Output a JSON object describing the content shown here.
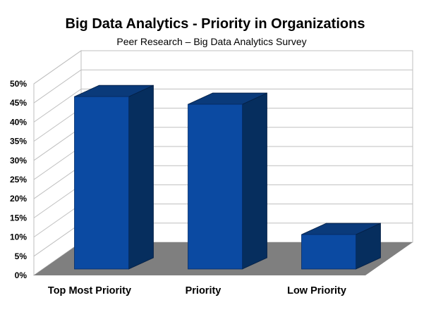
{
  "chart_data": {
    "type": "bar",
    "title": "Big Data Analytics - Priority in Organizations",
    "subtitle": "Peer Research – Big Data Analytics Survey",
    "categories": [
      "Top Most Priority",
      "Priority",
      "Low Priority"
    ],
    "values": [
      45,
      43,
      9
    ],
    "y_ticks": [
      "0%",
      "5%",
      "10%",
      "15%",
      "20%",
      "25%",
      "30%",
      "35%",
      "40%",
      "45%",
      "50%"
    ],
    "ylim": [
      0,
      50
    ],
    "unit": "%",
    "grid": true,
    "legend": "none",
    "style": "3d",
    "colors": {
      "bar_front": "#0B4AA2",
      "bar_side": "#062E5E",
      "bar_top": "#0A3A7A",
      "floor": "#7F7F7F",
      "grid": "#BFBFBF",
      "axis_text": "#000000"
    }
  }
}
